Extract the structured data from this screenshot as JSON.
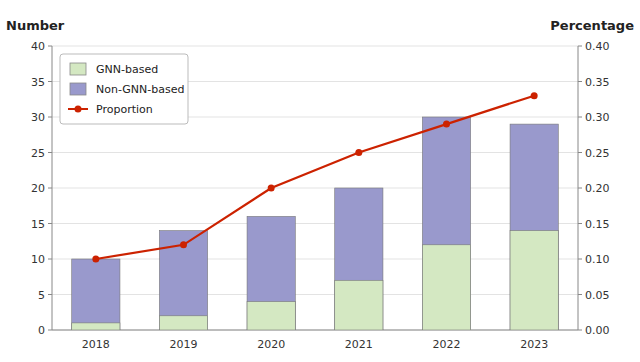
{
  "chart_data": {
    "type": "bar",
    "categories": [
      "2018",
      "2019",
      "2020",
      "2021",
      "2022",
      "2023"
    ],
    "series": [
      {
        "name": "GNN-based",
        "color": "#d4e8c2",
        "values": [
          1,
          2,
          4,
          7,
          12,
          14
        ]
      },
      {
        "name": "Non-GNN-based",
        "color": "#9999cc",
        "values": [
          10,
          14,
          16,
          20,
          30,
          29
        ]
      },
      {
        "name": "Proportion",
        "color": "#cc2200",
        "type": "line",
        "marker": "circle",
        "axis": "y2",
        "values": [
          0.1,
          0.12,
          0.2,
          0.25,
          0.29,
          0.33
        ]
      }
    ],
    "ylabel": "Number",
    "y2label": "Percentage",
    "ylim": [
      0,
      40
    ],
    "yticks": [
      0,
      5,
      10,
      15,
      20,
      25,
      30,
      35,
      40
    ],
    "y2lim": [
      0.0,
      0.4
    ],
    "y2ticks": [
      {
        "value": 0.0,
        "label": "0.00"
      },
      {
        "value": 0.05,
        "label": "0.05"
      },
      {
        "value": 0.1,
        "label": "0.10"
      },
      {
        "value": 0.15,
        "label": "0.15"
      },
      {
        "value": 0.2,
        "label": "0.20"
      },
      {
        "value": 0.25,
        "label": "0.25"
      },
      {
        "value": 0.3,
        "label": "0.30"
      },
      {
        "value": 0.35,
        "label": "0.35"
      },
      {
        "value": 0.4,
        "label": "0.40"
      }
    ],
    "stacked": false,
    "grid": true,
    "legend": "upper-left"
  }
}
